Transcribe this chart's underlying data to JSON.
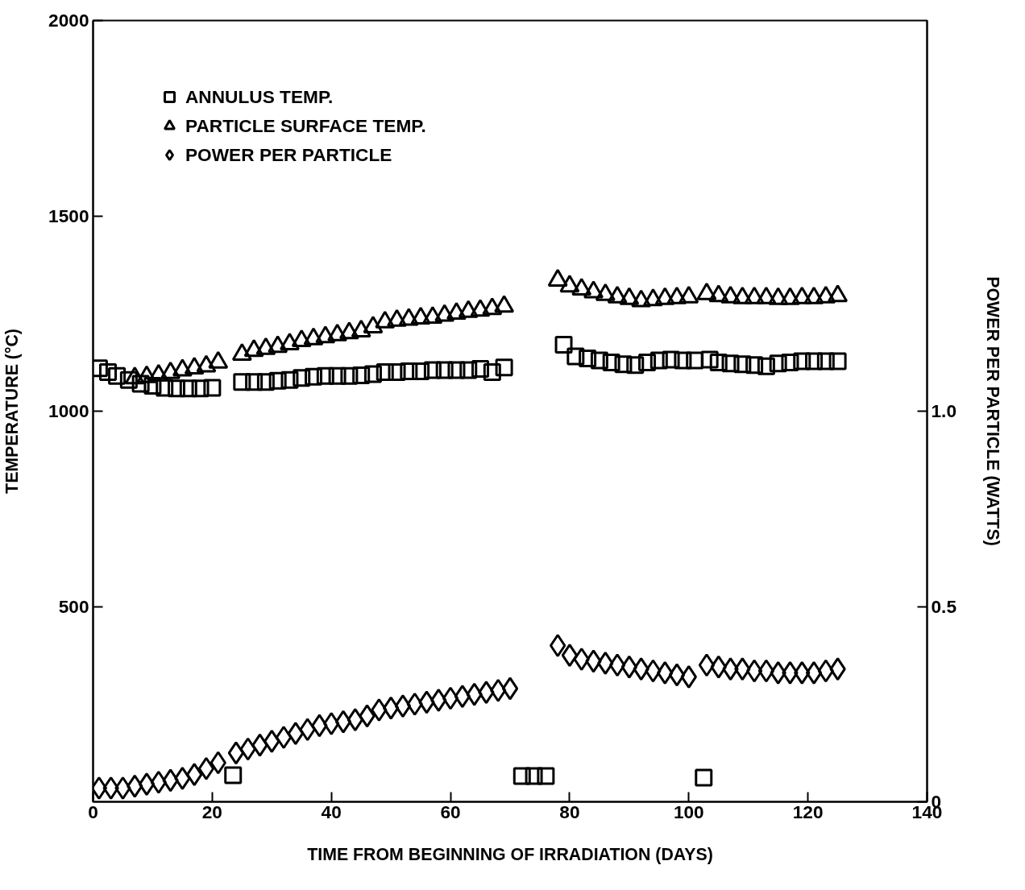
{
  "chart_data": {
    "type": "scatter",
    "xlabel": "TIME FROM BEGINNING OF IRRADIATION (DAYS)",
    "ylabel": "TEMPERATURE (°C)",
    "y2label": "POWER PER PARTICLE (WATTS)",
    "xlim": [
      0,
      140
    ],
    "xticks": [
      0,
      20,
      40,
      60,
      80,
      100,
      120,
      140
    ],
    "ylim": [
      0,
      2000
    ],
    "yticks": [
      500,
      1000,
      1500,
      2000
    ],
    "y2lim": [
      0,
      2.0
    ],
    "y2ticks": [
      {
        "value": 0,
        "label": "0"
      },
      {
        "value": 0.5,
        "label": "0.5"
      },
      {
        "value": 1.0,
        "label": "1.0"
      }
    ],
    "grid": false,
    "legend": "top left",
    "series": [
      {
        "name": "ANNULUS TEMP.",
        "color": "#000000",
        "marker": "square",
        "x": [
          1,
          2.5,
          4,
          6,
          8,
          10,
          12,
          14,
          16,
          18,
          20,
          23.5,
          25,
          27,
          29,
          31,
          33,
          35,
          37,
          39,
          41,
          43,
          45,
          47,
          49,
          51,
          53,
          55,
          57,
          59,
          61,
          63,
          65,
          67,
          69,
          72,
          74,
          76,
          79,
          81,
          83,
          85,
          87,
          89,
          91,
          93,
          95,
          97,
          99,
          101,
          102.5,
          103.5,
          105,
          107,
          109,
          111,
          113,
          115,
          117,
          119,
          121,
          123,
          125
        ],
        "values": [
          1110,
          1100,
          1090,
          1080,
          1070,
          1065,
          1060,
          1058,
          1058,
          1058,
          1060,
          68,
          1075,
          1075,
          1075,
          1078,
          1080,
          1085,
          1088,
          1090,
          1090,
          1090,
          1092,
          1095,
          1100,
          1100,
          1102,
          1102,
          1105,
          1105,
          1105,
          1105,
          1108,
          1100,
          1112,
          66,
          66,
          66,
          1170,
          1140,
          1135,
          1130,
          1125,
          1120,
          1118,
          1125,
          1130,
          1132,
          1130,
          1130,
          62,
          1132,
          1125,
          1122,
          1120,
          1118,
          1115,
          1122,
          1125,
          1128,
          1128,
          1128,
          1128
        ]
      },
      {
        "name": "PARTICLE SURFACE TEMP.",
        "color": "#000000",
        "marker": "triangle",
        "x": [
          7,
          9,
          11,
          13,
          15,
          17,
          19,
          21,
          25,
          27,
          29,
          31,
          33,
          35,
          37,
          39,
          41,
          43,
          45,
          47,
          49,
          51,
          53,
          55,
          57,
          59,
          61,
          63,
          65,
          67,
          69,
          78,
          80,
          82,
          84,
          86,
          88,
          90,
          92,
          94,
          96,
          98,
          100,
          103,
          105,
          107,
          109,
          111,
          113,
          115,
          117,
          119,
          121,
          123,
          125
        ],
        "values": [
          1085,
          1088,
          1092,
          1098,
          1105,
          1110,
          1115,
          1125,
          1145,
          1155,
          1160,
          1165,
          1172,
          1180,
          1185,
          1190,
          1195,
          1200,
          1205,
          1215,
          1228,
          1232,
          1235,
          1238,
          1240,
          1245,
          1250,
          1255,
          1258,
          1262,
          1268,
          1335,
          1320,
          1312,
          1305,
          1298,
          1292,
          1288,
          1282,
          1285,
          1288,
          1290,
          1292,
          1300,
          1295,
          1292,
          1290,
          1290,
          1290,
          1288,
          1288,
          1290,
          1290,
          1292,
          1295
        ]
      },
      {
        "name": "POWER PER PARTICLE",
        "color": "#000000",
        "marker": "diamond",
        "axis": "y2",
        "x": [
          1,
          3,
          5,
          7,
          9,
          11,
          13,
          15,
          17,
          19,
          21,
          24,
          26,
          28,
          30,
          32,
          34,
          36,
          38,
          40,
          42,
          44,
          46,
          48,
          50,
          52,
          54,
          56,
          58,
          60,
          62,
          64,
          66,
          68,
          70,
          78,
          80,
          82,
          84,
          86,
          88,
          90,
          92,
          94,
          96,
          98,
          100,
          103,
          105,
          107,
          109,
          111,
          113,
          115,
          117,
          119,
          121,
          123,
          125
        ],
        "values": [
          0.035,
          0.035,
          0.035,
          0.04,
          0.045,
          0.05,
          0.055,
          0.06,
          0.07,
          0.085,
          0.1,
          0.125,
          0.135,
          0.145,
          0.155,
          0.165,
          0.175,
          0.185,
          0.195,
          0.2,
          0.205,
          0.21,
          0.22,
          0.235,
          0.24,
          0.245,
          0.25,
          0.255,
          0.26,
          0.265,
          0.27,
          0.275,
          0.28,
          0.285,
          0.29,
          0.4,
          0.375,
          0.365,
          0.36,
          0.355,
          0.35,
          0.345,
          0.34,
          0.335,
          0.33,
          0.325,
          0.32,
          0.35,
          0.345,
          0.34,
          0.34,
          0.335,
          0.335,
          0.33,
          0.33,
          0.33,
          0.33,
          0.335,
          0.34
        ]
      }
    ]
  }
}
